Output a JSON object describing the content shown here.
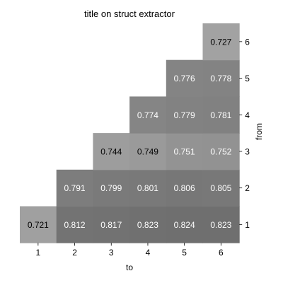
{
  "chart_data": {
    "type": "heatmap",
    "title": "title on struct extractor",
    "xlabel": "to",
    "ylabel": "from",
    "x_categories": [
      "1",
      "2",
      "3",
      "4",
      "5",
      "6"
    ],
    "y_categories": [
      "1",
      "2",
      "3",
      "4",
      "5",
      "6"
    ],
    "y_axis_position": "right",
    "colormap": "grayscale",
    "cells": [
      {
        "from": "1",
        "to": "1",
        "value": "0.721",
        "color": "#a0a0a0",
        "text_color": "#000000"
      },
      {
        "from": "1",
        "to": "2",
        "value": "0.812",
        "color": "#737373",
        "text_color": "#ffffff"
      },
      {
        "from": "1",
        "to": "3",
        "value": "0.817",
        "color": "#727272",
        "text_color": "#ffffff"
      },
      {
        "from": "1",
        "to": "4",
        "value": "0.823",
        "color": "#707070",
        "text_color": "#ffffff"
      },
      {
        "from": "1",
        "to": "5",
        "value": "0.824",
        "color": "#6f6f6f",
        "text_color": "#ffffff"
      },
      {
        "from": "1",
        "to": "6",
        "value": "0.823",
        "color": "#6f6f6f",
        "text_color": "#ffffff"
      },
      {
        "from": "2",
        "to": "2",
        "value": "0.791",
        "color": "#7d7d7d",
        "text_color": "#ffffff"
      },
      {
        "from": "2",
        "to": "3",
        "value": "0.799",
        "color": "#7a7a7a",
        "text_color": "#ffffff"
      },
      {
        "from": "2",
        "to": "4",
        "value": "0.801",
        "color": "#797979",
        "text_color": "#ffffff"
      },
      {
        "from": "2",
        "to": "5",
        "value": "0.806",
        "color": "#777777",
        "text_color": "#ffffff"
      },
      {
        "from": "2",
        "to": "6",
        "value": "0.805",
        "color": "#787878",
        "text_color": "#ffffff"
      },
      {
        "from": "3",
        "to": "3",
        "value": "0.744",
        "color": "#9d9d9d",
        "text_color": "#000000"
      },
      {
        "from": "3",
        "to": "4",
        "value": "0.749",
        "color": "#9a9a9a",
        "text_color": "#000000"
      },
      {
        "from": "3",
        "to": "5",
        "value": "0.751",
        "color": "#939393",
        "text_color": "#ffffff"
      },
      {
        "from": "3",
        "to": "6",
        "value": "0.752",
        "color": "#929292",
        "text_color": "#ffffff"
      },
      {
        "from": "4",
        "to": "4",
        "value": "0.774",
        "color": "#858585",
        "text_color": "#ffffff"
      },
      {
        "from": "4",
        "to": "5",
        "value": "0.779",
        "color": "#828282",
        "text_color": "#ffffff"
      },
      {
        "from": "4",
        "to": "6",
        "value": "0.781",
        "color": "#818181",
        "text_color": "#ffffff"
      },
      {
        "from": "5",
        "to": "5",
        "value": "0.776",
        "color": "#848484",
        "text_color": "#ffffff"
      },
      {
        "from": "5",
        "to": "6",
        "value": "0.778",
        "color": "#838383",
        "text_color": "#ffffff"
      },
      {
        "from": "6",
        "to": "6",
        "value": "0.727",
        "color": "#a2a2a2",
        "text_color": "#000000"
      }
    ]
  }
}
